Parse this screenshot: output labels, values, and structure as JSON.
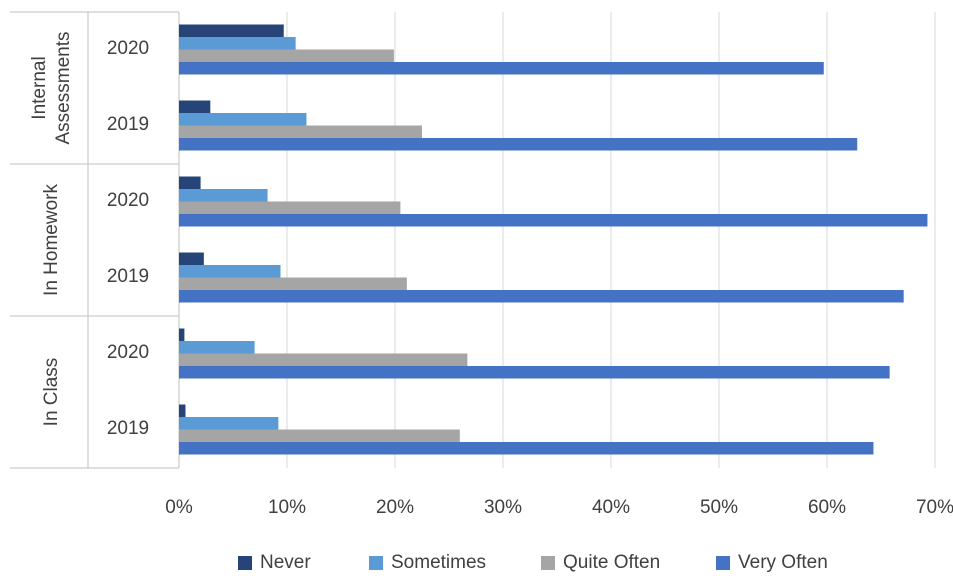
{
  "chart_data": {
    "type": "bar",
    "orientation": "horizontal",
    "x_ticks": [
      "0%",
      "10%",
      "20%",
      "30%",
      "40%",
      "50%",
      "60%",
      "70%"
    ],
    "xlim": [
      0,
      70
    ],
    "grid": true,
    "legend_position": "bottom",
    "groups": [
      {
        "label": "Internal Assessments",
        "years": [
          "2020",
          "2019"
        ]
      },
      {
        "label": "In Homework",
        "years": [
          "2020",
          "2019"
        ]
      },
      {
        "label": "In Class",
        "years": [
          "2020",
          "2019"
        ]
      }
    ],
    "categories": [
      "Internal Assessments 2020",
      "Internal Assessments 2019",
      "In Homework 2020",
      "In Homework 2019",
      "In Class 2020",
      "In Class 2019"
    ],
    "series": [
      {
        "name": "Never",
        "color": "#264478",
        "values": [
          9.7,
          2.9,
          2.0,
          2.3,
          0.5,
          0.6
        ]
      },
      {
        "name": "Sometimes",
        "color": "#5B9BD5",
        "values": [
          10.8,
          11.8,
          8.2,
          9.4,
          7.0,
          9.2
        ]
      },
      {
        "name": "Quite Often",
        "color": "#A5A5A5",
        "values": [
          19.9,
          22.5,
          20.5,
          21.1,
          26.7,
          26.0
        ]
      },
      {
        "name": "Very Often",
        "color": "#4472C4",
        "values": [
          59.7,
          62.8,
          69.3,
          67.1,
          65.8,
          64.3
        ]
      }
    ]
  }
}
